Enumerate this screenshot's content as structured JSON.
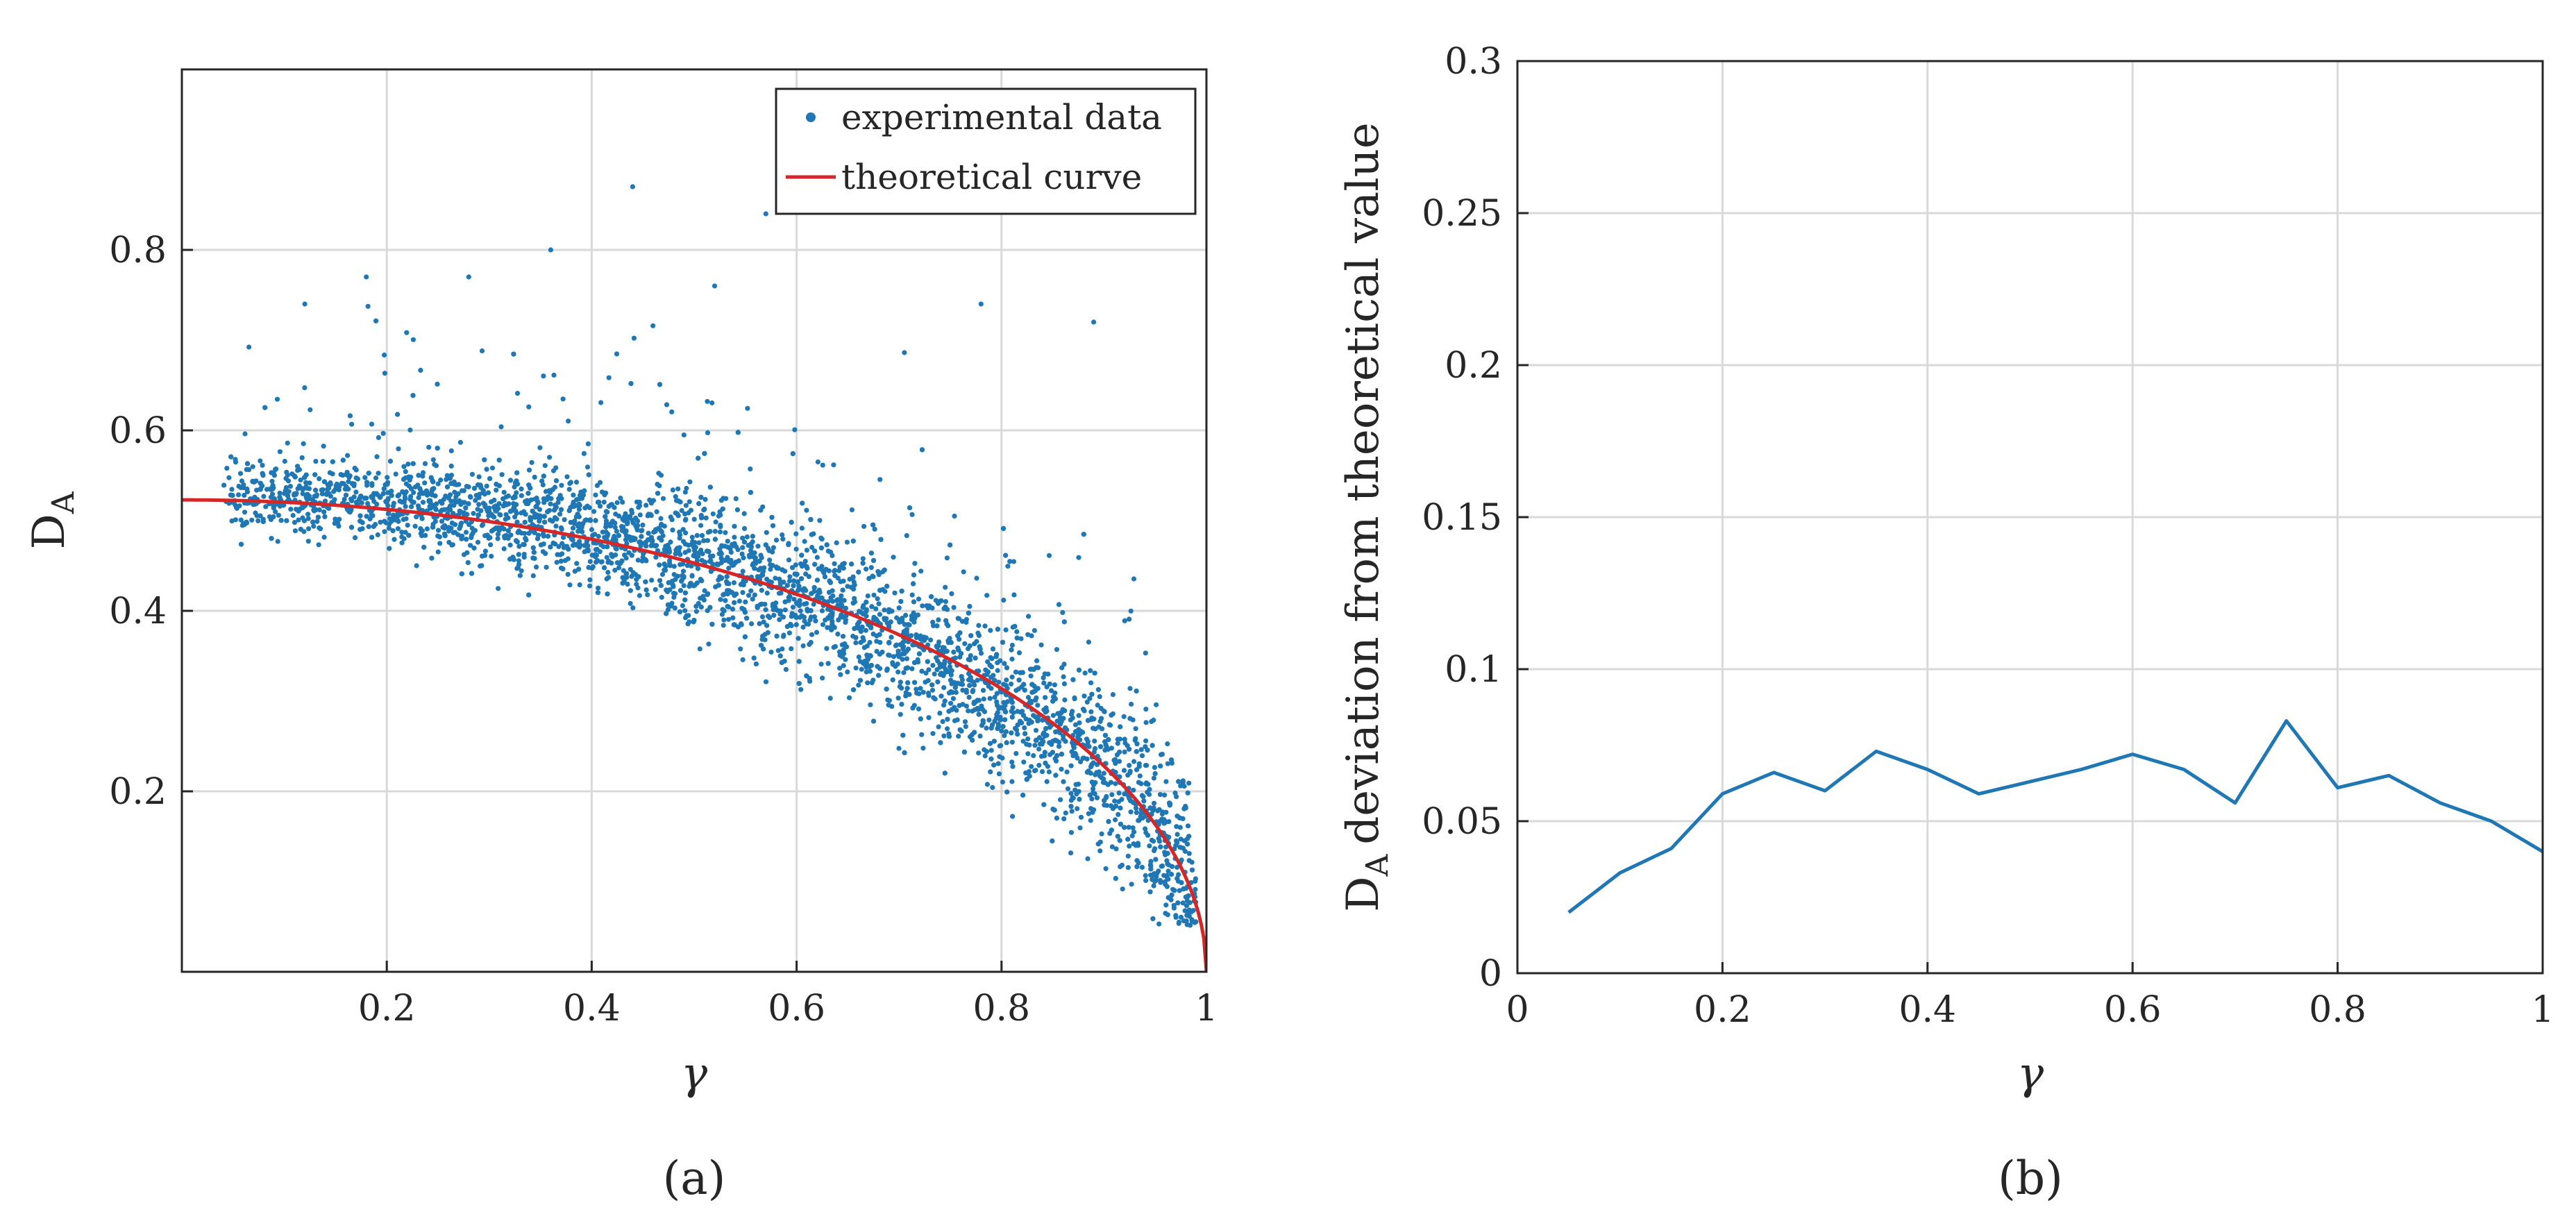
{
  "chart_data": [
    {
      "panel": "(a)",
      "type": "scatter",
      "xlabel": "γ",
      "ylabel": "D",
      "ylabel_subscript": "A",
      "xlim": [
        0,
        1
      ],
      "ylim": [
        0,
        1
      ],
      "xticks": [
        0.2,
        0.4,
        0.6,
        0.8,
        1
      ],
      "xtick_labels": [
        "0.2",
        "0.4",
        "0.6",
        "0.8",
        "1"
      ],
      "yticks": [
        0.2,
        0.4,
        0.6,
        0.8
      ],
      "ytick_labels": [
        "0.2",
        "0.4",
        "0.6",
        "0.8"
      ],
      "grid": true,
      "legend": {
        "position": "top-right",
        "entries": [
          "experimental data",
          "theoretical curve"
        ]
      },
      "series": [
        {
          "name": "experimental data",
          "kind": "scatter",
          "color": "#1f77b4",
          "x_range": [
            0.04,
            0.99
          ],
          "description_points": [
            [
              0.05,
              0.52
            ],
            [
              0.1,
              0.53
            ],
            [
              0.2,
              0.52
            ],
            [
              0.3,
              0.51
            ],
            [
              0.4,
              0.49
            ],
            [
              0.5,
              0.47
            ],
            [
              0.6,
              0.44
            ],
            [
              0.7,
              0.39
            ],
            [
              0.8,
              0.31
            ],
            [
              0.9,
              0.22
            ],
            [
              0.97,
              0.14
            ],
            [
              0.44,
              0.87
            ],
            [
              0.18,
              0.77
            ],
            [
              0.28,
              0.77
            ],
            [
              0.36,
              0.8
            ],
            [
              0.57,
              0.84
            ],
            [
              0.78,
              0.74
            ],
            [
              0.89,
              0.72
            ],
            [
              0.12,
              0.74
            ],
            [
              0.52,
              0.76
            ]
          ]
        },
        {
          "name": "theoretical curve",
          "kind": "line",
          "color": "#d62728",
          "formula": "0.523*sqrt(1-x^2)",
          "x_range": [
            0.0,
            1.0
          ]
        }
      ]
    },
    {
      "panel": "(b)",
      "type": "line",
      "xlabel": "γ",
      "ylabel": "D",
      "ylabel_subscript": "A",
      "ylabel_rest": "deviation from theoretical value",
      "xlim": [
        0,
        1
      ],
      "ylim": [
        0,
        0.3
      ],
      "xticks": [
        0,
        0.2,
        0.4,
        0.6,
        0.8,
        1
      ],
      "xtick_labels": [
        "0",
        "0.2",
        "0.4",
        "0.6",
        "0.8",
        "1"
      ],
      "yticks": [
        0,
        0.05,
        0.1,
        0.15,
        0.2,
        0.25,
        0.3
      ],
      "ytick_labels": [
        "0",
        "0.05",
        "0.1",
        "0.15",
        "0.2",
        "0.25",
        "0.3"
      ],
      "grid": true,
      "series": [
        {
          "name": "deviation",
          "color": "#1f77b4",
          "x": [
            0.05,
            0.1,
            0.15,
            0.2,
            0.25,
            0.3,
            0.35,
            0.4,
            0.45,
            0.5,
            0.55,
            0.6,
            0.65,
            0.7,
            0.75,
            0.8,
            0.85,
            0.9,
            0.95,
            1.0
          ],
          "y": [
            0.02,
            0.033,
            0.041,
            0.059,
            0.066,
            0.06,
            0.073,
            0.067,
            0.059,
            0.063,
            0.067,
            0.072,
            0.067,
            0.056,
            0.083,
            0.061,
            0.065,
            0.056,
            0.05,
            0.04
          ]
        }
      ]
    }
  ]
}
